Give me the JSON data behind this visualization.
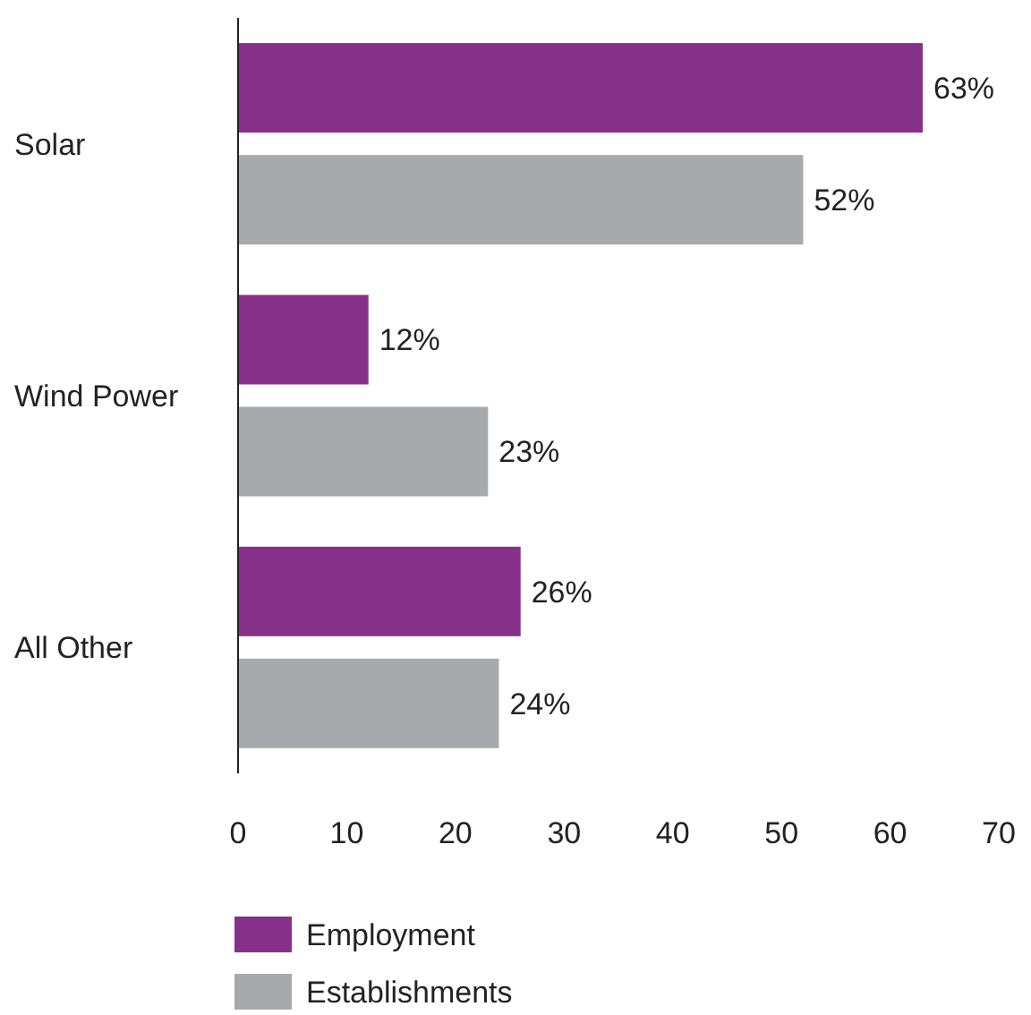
{
  "chart_data": {
    "type": "bar",
    "orientation": "horizontal",
    "categories": [
      "Solar",
      "Wind Power",
      "All Other"
    ],
    "series": [
      {
        "name": "Employment",
        "color": "#87308a",
        "values": [
          63,
          12,
          26
        ],
        "value_labels": [
          "63%",
          "12%",
          "26%"
        ]
      },
      {
        "name": "Establishments",
        "color": "#a8a9ad",
        "values": [
          52,
          23,
          24
        ],
        "value_labels": [
          "52%",
          "23%",
          "24%"
        ]
      }
    ],
    "xlim": [
      0,
      70
    ],
    "xticks": [
      0,
      10,
      20,
      30,
      40,
      50,
      60,
      70
    ],
    "grid": false,
    "legend": "bottom left"
  }
}
